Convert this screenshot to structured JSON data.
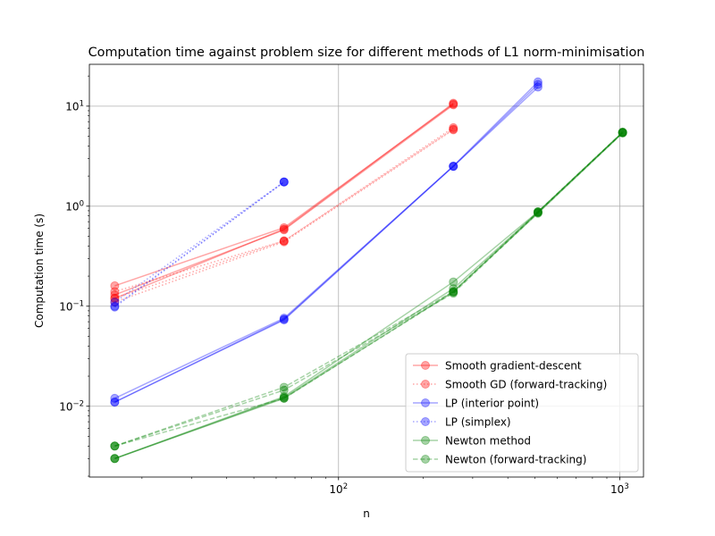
{
  "chart_data": {
    "type": "line",
    "title": "Computation time against problem size for different methods of L1 norm-minimisation",
    "xlabel": "n",
    "ylabel": "Computation time (s)",
    "xscale": "log",
    "yscale": "log",
    "xlim": [
      13.0,
      1215.0
    ],
    "ylim": [
      0.00196,
      26.2
    ],
    "grid": true,
    "legend_position": "lower right",
    "x_tick_labels": [
      {
        "value": 100,
        "base": "10",
        "exp": "2"
      },
      {
        "value": 1000,
        "base": "10",
        "exp": "3"
      }
    ],
    "y_tick_labels": [
      {
        "value": 0.01,
        "base": "10",
        "exp": "−2"
      },
      {
        "value": 0.1,
        "base": "10",
        "exp": "−1"
      },
      {
        "value": 1,
        "base": "10",
        "exp": "0"
      },
      {
        "value": 10,
        "base": "10",
        "exp": "1"
      }
    ],
    "series": [
      {
        "name": "Smooth gradient-descent",
        "color": "#ff0000",
        "linestyle": "solid",
        "runs": [
          [
            [
              16,
              0.16
            ],
            [
              64,
              0.61
            ],
            [
              256,
              10.5
            ]
          ],
          [
            [
              16,
              0.13
            ],
            [
              64,
              0.58
            ],
            [
              256,
              10.3
            ]
          ],
          [
            [
              16,
              0.12
            ],
            [
              64,
              0.59
            ],
            [
              256,
              10.7
            ]
          ]
        ]
      },
      {
        "name": "Smooth GD (forward-tracking)",
        "color": "#ff0000",
        "linestyle": "dotted",
        "runs": [
          [
            [
              16,
              0.14
            ],
            [
              64,
              0.45
            ],
            [
              256,
              6.1
            ]
          ],
          [
            [
              16,
              0.11
            ],
            [
              64,
              0.44
            ],
            [
              256,
              5.8
            ]
          ],
          [
            [
              16,
              0.12
            ],
            [
              64,
              0.45
            ],
            [
              256,
              5.9
            ]
          ]
        ]
      },
      {
        "name": "LP (interior point)",
        "color": "#0000ff",
        "linestyle": "solid",
        "runs": [
          [
            [
              16,
              0.011
            ],
            [
              64,
              0.073
            ],
            [
              256,
              2.5
            ],
            [
              512,
              15.5
            ]
          ],
          [
            [
              16,
              0.012
            ],
            [
              64,
              0.076
            ],
            [
              256,
              2.5
            ],
            [
              512,
              16.5
            ]
          ],
          [
            [
              16,
              0.011
            ],
            [
              64,
              0.074
            ],
            [
              256,
              2.52
            ],
            [
              512,
              17.5
            ]
          ]
        ]
      },
      {
        "name": "LP (simplex)",
        "color": "#0000ff",
        "linestyle": "dotted",
        "runs": [
          [
            [
              16,
              0.1
            ],
            [
              64,
              1.75
            ]
          ],
          [
            [
              16,
              0.11
            ],
            [
              64,
              1.75
            ]
          ],
          [
            [
              16,
              0.098
            ],
            [
              64,
              1.74
            ]
          ]
        ]
      },
      {
        "name": "Newton method",
        "color": "#008000",
        "linestyle": "solid",
        "runs": [
          [
            [
              16,
              0.003
            ],
            [
              64,
              0.012
            ],
            [
              256,
              0.14
            ],
            [
              512,
              0.85
            ],
            [
              1024,
              5.4
            ]
          ],
          [
            [
              16,
              0.003
            ],
            [
              64,
              0.0122
            ],
            [
              256,
              0.15
            ],
            [
              512,
              0.87
            ],
            [
              1024,
              5.5
            ]
          ],
          [
            [
              16,
              0.003
            ],
            [
              64,
              0.0125
            ],
            [
              256,
              0.175
            ],
            [
              512,
              0.88
            ],
            [
              1024,
              5.45
            ]
          ]
        ]
      },
      {
        "name": "Newton (forward-tracking)",
        "color": "#008000",
        "linestyle": "dashed",
        "runs": [
          [
            [
              16,
              0.004
            ],
            [
              64,
              0.0145
            ],
            [
              256,
              0.135
            ],
            [
              512,
              0.86
            ],
            [
              1024,
              5.4
            ]
          ],
          [
            [
              16,
              0.004
            ],
            [
              64,
              0.0155
            ],
            [
              256,
              0.14
            ],
            [
              512,
              0.88
            ],
            [
              1024,
              5.5
            ]
          ],
          [
            [
              16,
              0.004
            ],
            [
              64,
              0.012
            ],
            [
              256,
              0.138
            ],
            [
              512,
              0.87
            ],
            [
              1024,
              5.45
            ]
          ]
        ]
      }
    ]
  }
}
